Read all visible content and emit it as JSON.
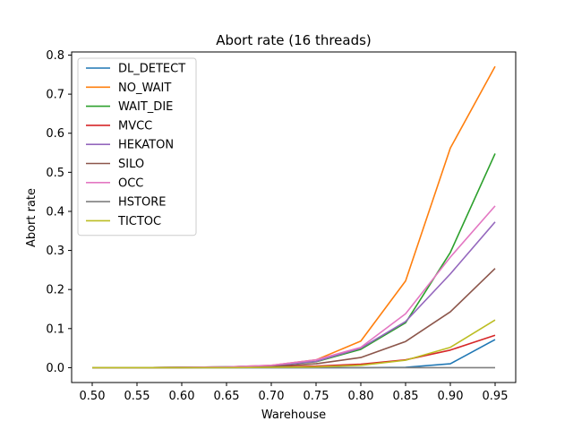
{
  "chart_data": {
    "type": "line",
    "title": "Abort rate (16 threads)",
    "xlabel": "Warehouse",
    "ylabel": "Abort rate",
    "x": [
      0.5,
      0.55,
      0.6,
      0.65,
      0.7,
      0.75,
      0.8,
      0.85,
      0.9,
      0.95
    ],
    "x_tick_labels": [
      "0.50",
      "0.55",
      "0.60",
      "0.65",
      "0.70",
      "0.75",
      "0.80",
      "0.85",
      "0.90",
      "0.95"
    ],
    "y_ticks": [
      0.0,
      0.1,
      0.2,
      0.3,
      0.4,
      0.5,
      0.6,
      0.7,
      0.8
    ],
    "y_tick_labels": [
      "0.0",
      "0.1",
      "0.2",
      "0.3",
      "0.4",
      "0.5",
      "0.6",
      "0.7",
      "0.8"
    ],
    "xlim": [
      0.477,
      0.973
    ],
    "ylim": [
      -0.038,
      0.808
    ],
    "grid": false,
    "legend_position": "top-left",
    "series": [
      {
        "name": "DL_DETECT",
        "color": "#1f77b4",
        "values": [
          0.0,
          0.0,
          0.0,
          0.0,
          0.0,
          0.0,
          0.0,
          0.001,
          0.01,
          0.072
        ]
      },
      {
        "name": "NO_WAIT",
        "color": "#ff7f0e",
        "values": [
          0.0,
          0.0,
          0.001,
          0.002,
          0.006,
          0.02,
          0.068,
          0.222,
          0.562,
          0.771
        ]
      },
      {
        "name": "WAIT_DIE",
        "color": "#2ca02c",
        "values": [
          0.0,
          0.0,
          0.001,
          0.002,
          0.005,
          0.015,
          0.047,
          0.115,
          0.295,
          0.548
        ]
      },
      {
        "name": "MVCC",
        "color": "#d62728",
        "values": [
          0.0,
          0.0,
          0.0,
          0.001,
          0.002,
          0.004,
          0.009,
          0.02,
          0.045,
          0.083
        ]
      },
      {
        "name": "HEKATON",
        "color": "#9467bd",
        "values": [
          0.0,
          0.0,
          0.001,
          0.002,
          0.005,
          0.016,
          0.05,
          0.118,
          0.24,
          0.373
        ]
      },
      {
        "name": "SILO",
        "color": "#8c564b",
        "values": [
          0.0,
          0.0,
          0.001,
          0.001,
          0.003,
          0.01,
          0.026,
          0.067,
          0.143,
          0.254
        ]
      },
      {
        "name": "OCC",
        "color": "#e377c2",
        "values": [
          0.0,
          0.0,
          0.001,
          0.002,
          0.006,
          0.02,
          0.052,
          0.138,
          0.283,
          0.414
        ]
      },
      {
        "name": "HSTORE",
        "color": "#7f7f7f",
        "values": [
          0.0,
          0.0,
          0.0,
          0.0,
          0.0,
          0.0,
          0.0,
          0.0,
          0.0,
          0.0
        ]
      },
      {
        "name": "TICTOC",
        "color": "#bcbd22",
        "values": [
          0.0,
          0.0,
          0.0,
          0.0,
          0.001,
          0.002,
          0.006,
          0.019,
          0.052,
          0.122
        ]
      }
    ]
  }
}
